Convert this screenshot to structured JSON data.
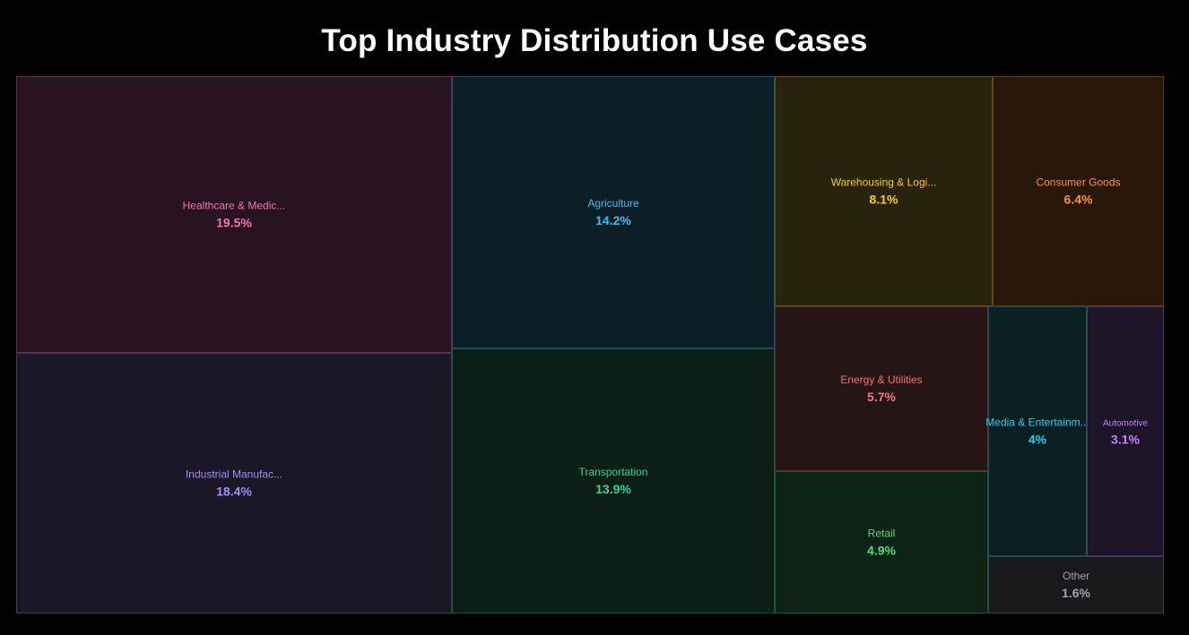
{
  "chart_data": {
    "type": "treemap",
    "title": "Top Industry Distribution Use Cases",
    "unit": "%",
    "items": [
      {
        "label": "Healthcare & Medic...",
        "value": 19.5,
        "value_label": "19.5%",
        "color": "#f472b6",
        "fill": "#281420"
      },
      {
        "label": "Industrial Manufac...",
        "value": 18.4,
        "value_label": "18.4%",
        "color": "#a78bfa",
        "fill": "#1b1727"
      },
      {
        "label": "Agriculture",
        "value": 14.2,
        "value_label": "14.2%",
        "color": "#38bdf8",
        "fill": "#0b1e26"
      },
      {
        "label": "Transportation",
        "value": 13.9,
        "value_label": "13.9%",
        "color": "#34d399",
        "fill": "#0b1f17"
      },
      {
        "label": "Warehousing & Logi...",
        "value": 8.1,
        "value_label": "8.1%",
        "color": "#facc15",
        "fill": "#27230c"
      },
      {
        "label": "Consumer Goods",
        "value": 6.4,
        "value_label": "6.4%",
        "color": "#fb923c",
        "fill": "#27180b"
      },
      {
        "label": "Energy & Utilities",
        "value": 5.7,
        "value_label": "5.7%",
        "color": "#f87171",
        "fill": "#261515"
      },
      {
        "label": "Retail",
        "value": 4.9,
        "value_label": "4.9%",
        "color": "#4ade80",
        "fill": "#0e2216"
      },
      {
        "label": "Media & Entertainm...",
        "value": 4.0,
        "value_label": "4%",
        "color": "#22d3ee",
        "fill": "#0b1e22"
      },
      {
        "label": "Automotive",
        "value": 3.1,
        "value_label": "3.1%",
        "color": "#c084fc",
        "fill": "#1d1428"
      },
      {
        "label": "Other",
        "value": 1.6,
        "value_label": "1.6%",
        "color": "#9ca3af",
        "fill": "#18191c"
      }
    ]
  }
}
